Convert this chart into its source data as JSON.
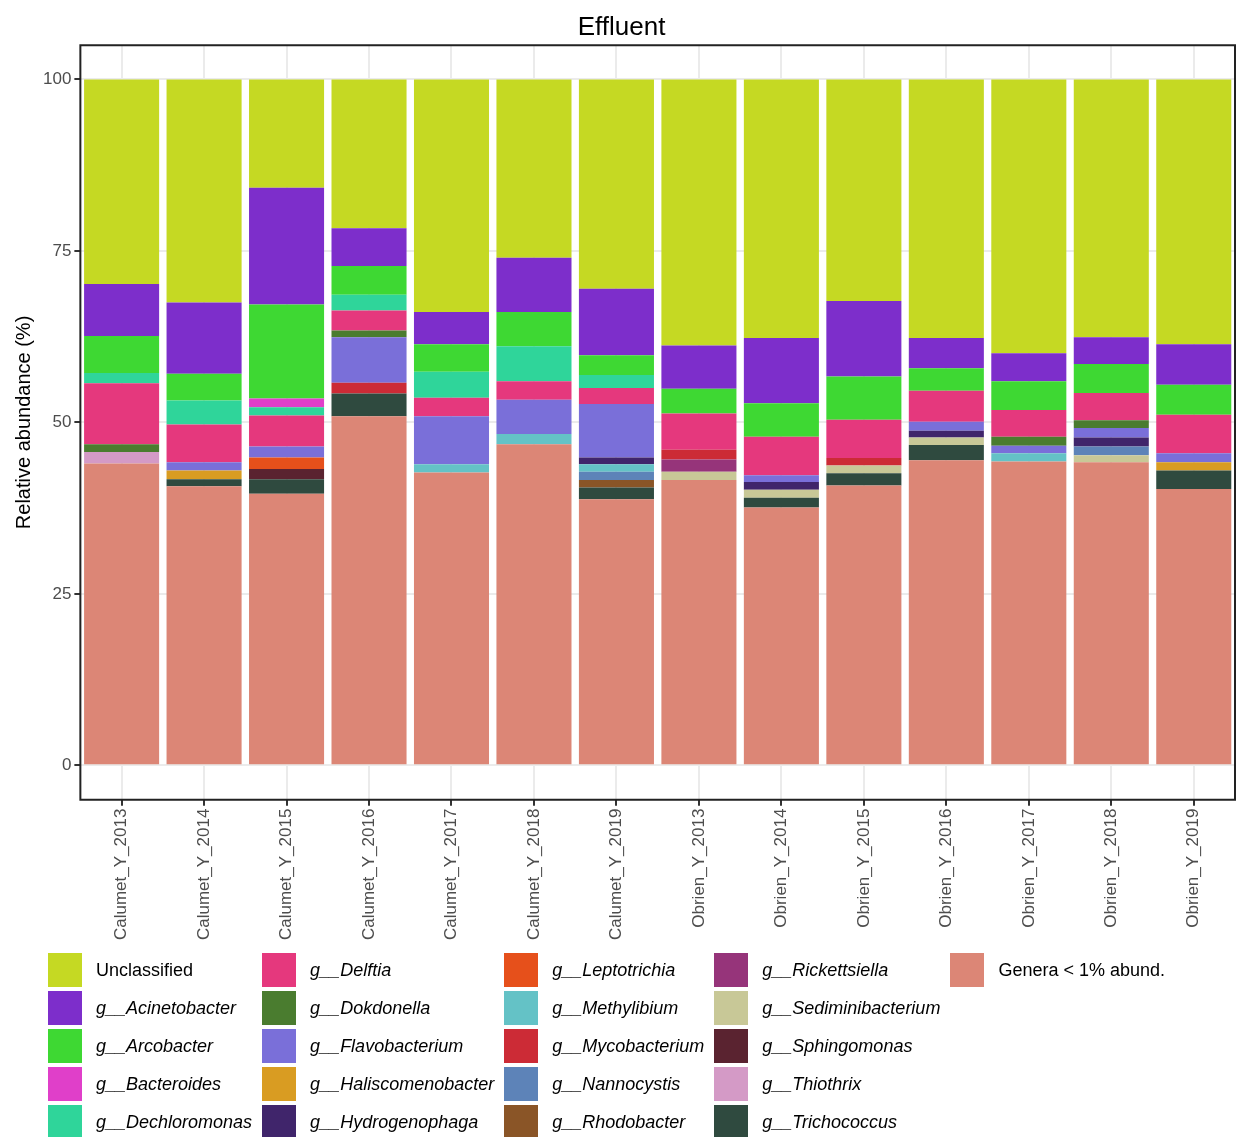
{
  "chart_data": {
    "type": "bar",
    "stacked": true,
    "title": "Effluent",
    "ylabel": "Relative abundance (%)",
    "categories": [
      "Calumet_Y_2013",
      "Calumet_Y_2014",
      "Calumet_Y_2015",
      "Calumet_Y_2016",
      "Calumet_Y_2017",
      "Calumet_Y_2018",
      "Calumet_Y_2019",
      "Obrien_Y_2013",
      "Obrien_Y_2014",
      "Obrien_Y_2015",
      "Obrien_Y_2016",
      "Obrien_Y_2017",
      "Obrien_Y_2018",
      "Obrien_Y_2019"
    ],
    "ylim": [
      -5,
      105
    ],
    "yticks": [
      0,
      25,
      50,
      75,
      100
    ],
    "grid": true,
    "legend": "bottom",
    "series": [
      {
        "name": "Genera < 1% abund.",
        "color": "#dc8676",
        "values": [
          44.0,
          40.7,
          39.6,
          50.9,
          42.7,
          46.8,
          38.8,
          41.6,
          37.6,
          40.8,
          44.5,
          44.3,
          44.2,
          40.3
        ]
      },
      {
        "name": "g__Trichococcus",
        "color": "#2f4a3f",
        "values": [
          null,
          1.0,
          2.1,
          3.3,
          null,
          null,
          1.7,
          null,
          1.4,
          1.8,
          2.2,
          null,
          null,
          2.7
        ]
      },
      {
        "name": "g__Thiothrix",
        "color": "#d49ac6",
        "values": [
          1.7,
          null,
          null,
          null,
          null,
          null,
          null,
          null,
          null,
          null,
          null,
          null,
          null,
          null
        ]
      },
      {
        "name": "g__Sphingomonas",
        "color": "#5a2330",
        "values": [
          null,
          null,
          1.5,
          null,
          null,
          null,
          null,
          null,
          null,
          null,
          null,
          null,
          null,
          null
        ]
      },
      {
        "name": "g__Sediminibacterium",
        "color": "#c8c897",
        "values": [
          null,
          null,
          null,
          null,
          null,
          null,
          null,
          1.2,
          1.2,
          1.1,
          1.1,
          null,
          1.0,
          null
        ]
      },
      {
        "name": "g__Rickettsiella",
        "color": "#96347a",
        "values": [
          null,
          null,
          null,
          null,
          null,
          null,
          null,
          1.8,
          null,
          null,
          null,
          null,
          null,
          null
        ]
      },
      {
        "name": "g__Rhodobacter",
        "color": "#8a5527",
        "values": [
          null,
          null,
          null,
          null,
          null,
          null,
          1.1,
          null,
          null,
          null,
          null,
          null,
          null,
          null
        ]
      },
      {
        "name": "g__Nannocystis",
        "color": "#5d83b8",
        "values": [
          null,
          null,
          null,
          null,
          null,
          null,
          1.2,
          null,
          null,
          null,
          null,
          null,
          1.3,
          null
        ]
      },
      {
        "name": "g__Mycobacterium",
        "color": "#cc2b36",
        "values": [
          null,
          null,
          null,
          1.6,
          null,
          null,
          null,
          1.4,
          null,
          1.1,
          null,
          null,
          null,
          null
        ]
      },
      {
        "name": "g__Methylibium",
        "color": "#64c2c6",
        "values": [
          null,
          null,
          null,
          null,
          1.2,
          1.5,
          1.1,
          null,
          null,
          null,
          null,
          1.2,
          null,
          null
        ]
      },
      {
        "name": "g__Leptotrichia",
        "color": "#e6501b",
        "values": [
          null,
          null,
          1.7,
          null,
          null,
          null,
          null,
          null,
          null,
          null,
          null,
          null,
          null,
          null
        ]
      },
      {
        "name": "g__Hydrogenophaga",
        "color": "#40256b",
        "values": [
          null,
          null,
          null,
          null,
          null,
          null,
          1.0,
          null,
          1.1,
          null,
          1.0,
          null,
          1.3,
          null
        ]
      },
      {
        "name": "g__Haliscomenobacter",
        "color": "#d99c22",
        "values": [
          null,
          1.3,
          null,
          null,
          null,
          null,
          null,
          null,
          null,
          null,
          null,
          null,
          null,
          1.2
        ]
      },
      {
        "name": "g__Flavobacterium",
        "color": "#7a6fd9",
        "values": [
          null,
          1.2,
          1.6,
          6.6,
          7.0,
          5.0,
          7.8,
          null,
          1.0,
          null,
          1.3,
          1.1,
          1.4,
          1.3
        ]
      },
      {
        "name": "g__Dokdonella",
        "color": "#4a7c2f",
        "values": [
          1.1,
          null,
          null,
          1.0,
          null,
          null,
          null,
          null,
          null,
          null,
          null,
          1.3,
          1.1,
          null
        ]
      },
      {
        "name": "g__Delftia",
        "color": "#e5387d",
        "values": [
          8.9,
          5.5,
          4.5,
          2.9,
          2.7,
          2.7,
          2.3,
          5.3,
          5.6,
          5.6,
          4.5,
          3.9,
          4.0,
          5.6
        ]
      },
      {
        "name": "g__Dechloromonas",
        "color": "#2fd59a",
        "values": [
          1.5,
          3.5,
          1.2,
          2.3,
          3.8,
          5.1,
          1.9,
          null,
          null,
          null,
          null,
          null,
          null,
          null
        ]
      },
      {
        "name": "g__Bacteroides",
        "color": "#e03fc9",
        "values": [
          null,
          null,
          1.3,
          null,
          null,
          null,
          null,
          null,
          null,
          null,
          null,
          null,
          null,
          null
        ]
      },
      {
        "name": "g__Arcobacter",
        "color": "#3ed833",
        "values": [
          5.4,
          3.9,
          13.7,
          4.2,
          4.0,
          5.0,
          2.9,
          3.6,
          4.9,
          6.3,
          3.3,
          4.2,
          4.2,
          4.4
        ]
      },
      {
        "name": "g__Acinetobacter",
        "color": "#7d2ecb",
        "values": [
          7.6,
          10.4,
          17.0,
          5.5,
          4.7,
          7.9,
          9.7,
          6.3,
          9.5,
          11.0,
          4.4,
          4.1,
          3.9,
          5.9
        ]
      },
      {
        "name": "Unclassified",
        "color": "#c5d923",
        "values": [
          29.8,
          32.5,
          15.8,
          21.7,
          33.9,
          26.0,
          30.5,
          38.8,
          37.7,
          32.3,
          37.7,
          39.9,
          37.6,
          38.6
        ]
      }
    ]
  }
}
